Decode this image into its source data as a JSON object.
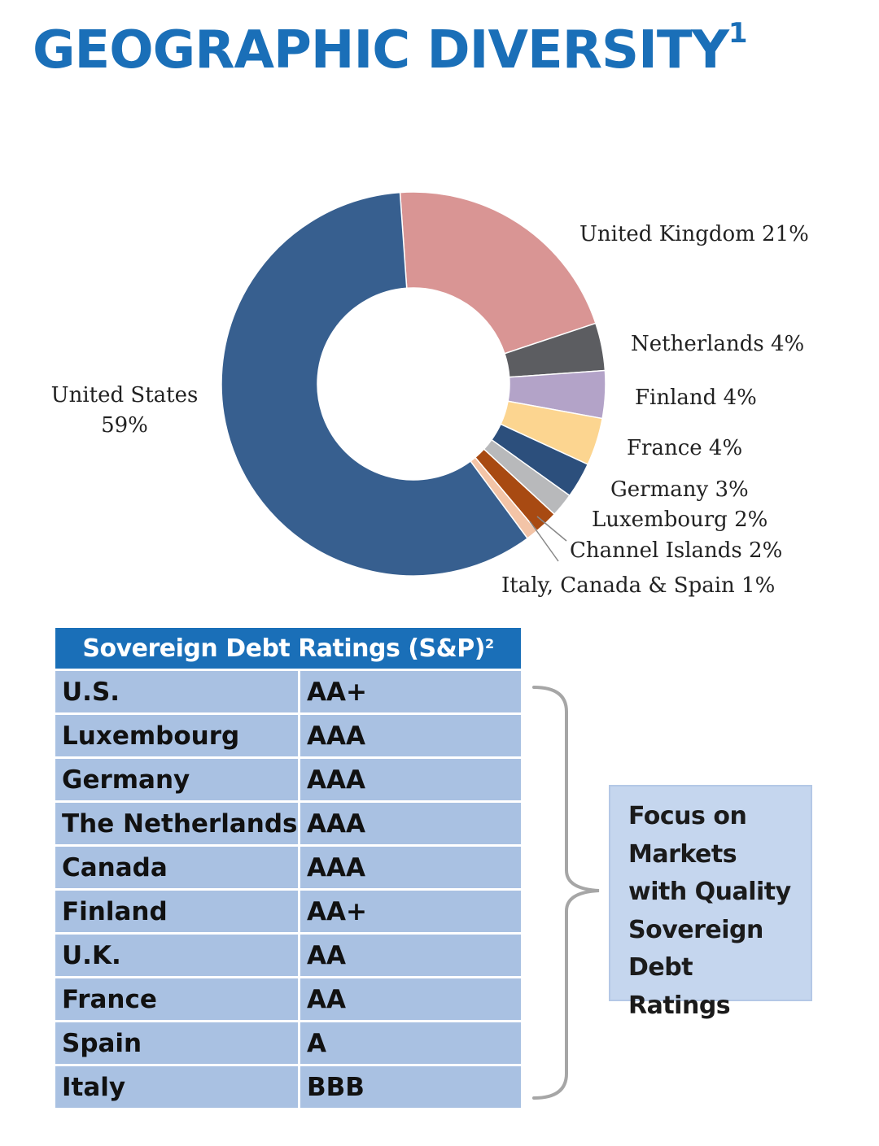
{
  "header": {
    "title": "GEOGRAPHIC DIVERSITY",
    "footnote": "1"
  },
  "chart_data": {
    "type": "pie",
    "style": "donut",
    "slices": [
      {
        "label": "United States",
        "value": 59,
        "color": "#375f8f"
      },
      {
        "label": "United Kingdom",
        "value": 21,
        "color": "#d99594"
      },
      {
        "label": "Netherlands",
        "value": 4,
        "color": "#5c5d61"
      },
      {
        "label": "Finland",
        "value": 4,
        "color": "#b3a3c8"
      },
      {
        "label": "France",
        "value": 4,
        "color": "#fcd590"
      },
      {
        "label": "Germany",
        "value": 3,
        "color": "#2c4f7c"
      },
      {
        "label": "Luxembourg",
        "value": 2,
        "color": "#b8b9bb"
      },
      {
        "label": "Channel Islands",
        "value": 2,
        "color": "#a84a12"
      },
      {
        "label": "Italy, Canada & Spain",
        "value": 1,
        "color": "#f3c4a7"
      }
    ],
    "data_labels": [
      "United States",
      "59%",
      "United Kingdom 21%",
      "Netherlands 4%",
      "Finland 4%",
      "France 4%",
      "Germany 3%",
      "Luxembourg 2%",
      "Channel Islands 2%",
      "Italy, Canada & Spain 1%"
    ]
  },
  "ratings_table": {
    "title": "Sovereign Debt Ratings (S&P)",
    "footnote": "2",
    "rows": [
      {
        "country": "U.S.",
        "rating": "AA+"
      },
      {
        "country": "Luxembourg",
        "rating": "AAA"
      },
      {
        "country": "Germany",
        "rating": "AAA"
      },
      {
        "country": "The Netherlands",
        "rating": "AAA"
      },
      {
        "country": "Canada",
        "rating": "AAA"
      },
      {
        "country": "Finland",
        "rating": "AA+"
      },
      {
        "country": "U.K.",
        "rating": "AA"
      },
      {
        "country": "France",
        "rating": "AA"
      },
      {
        "country": "Spain",
        "rating": "A"
      },
      {
        "country": "Italy",
        "rating": "BBB"
      }
    ]
  },
  "callout": {
    "lines": [
      "Focus on",
      "Markets",
      "with Quality",
      "Sovereign",
      "Debt Ratings"
    ]
  },
  "colors": {
    "brand_blue": "#1a6fb8",
    "table_cell": "#a9c1e2",
    "callout_bg": "#c5d6ee"
  }
}
